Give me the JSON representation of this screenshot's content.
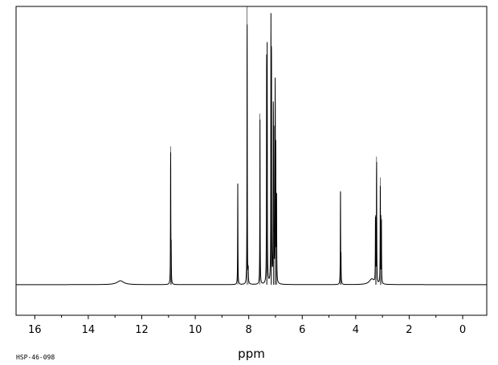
{
  "chart_data": {
    "type": "line",
    "xlabel": "ppm",
    "ylabel": "",
    "xlim": [
      16.7,
      -0.9
    ],
    "x_reversed": true,
    "xticks": [
      16,
      14,
      12,
      10,
      8,
      6,
      4,
      2,
      0
    ],
    "grid": false,
    "line_color": "#000000",
    "baseline": 0,
    "ylim": [
      -0.11,
      1.0
    ],
    "peaks": [
      {
        "shift": 12.8,
        "height": 0.014,
        "width": 0.3
      },
      {
        "shift": 10.92,
        "height": 0.497,
        "width": 0.012
      },
      {
        "shift": 10.9,
        "height": 0.12,
        "width": 0.012
      },
      {
        "shift": 8.41,
        "height": 0.364,
        "width": 0.012
      },
      {
        "shift": 8.06,
        "height": 1.0,
        "width": 0.012
      },
      {
        "shift": 8.02,
        "height": 0.05,
        "width": 0.012
      },
      {
        "shift": 7.58,
        "height": 0.615,
        "width": 0.012
      },
      {
        "shift": 7.33,
        "height": 0.826,
        "width": 0.012
      },
      {
        "shift": 7.31,
        "height": 0.8,
        "width": 0.012
      },
      {
        "shift": 7.17,
        "height": 0.899,
        "width": 0.012
      },
      {
        "shift": 7.15,
        "height": 0.84,
        "width": 0.012
      },
      {
        "shift": 7.08,
        "height": 0.646,
        "width": 0.012
      },
      {
        "shift": 7.06,
        "height": 0.5,
        "width": 0.012
      },
      {
        "shift": 7.01,
        "height": 0.718,
        "width": 0.012
      },
      {
        "shift": 6.99,
        "height": 0.45,
        "width": 0.012
      },
      {
        "shift": 6.96,
        "height": 0.32,
        "width": 0.012
      },
      {
        "shift": 4.57,
        "height": 0.333,
        "width": 0.012
      },
      {
        "shift": 4.55,
        "height": 0.09,
        "width": 0.012
      },
      {
        "shift": 3.4,
        "height": 0.02,
        "width": 0.22
      },
      {
        "shift": 3.26,
        "height": 0.25,
        "width": 0.012
      },
      {
        "shift": 3.22,
        "height": 0.46,
        "width": 0.012
      },
      {
        "shift": 3.08,
        "height": 0.385,
        "width": 0.012
      },
      {
        "shift": 3.04,
        "height": 0.25,
        "width": 0.012
      }
    ]
  },
  "footer": {
    "sample_code": "HSP-46-098"
  }
}
